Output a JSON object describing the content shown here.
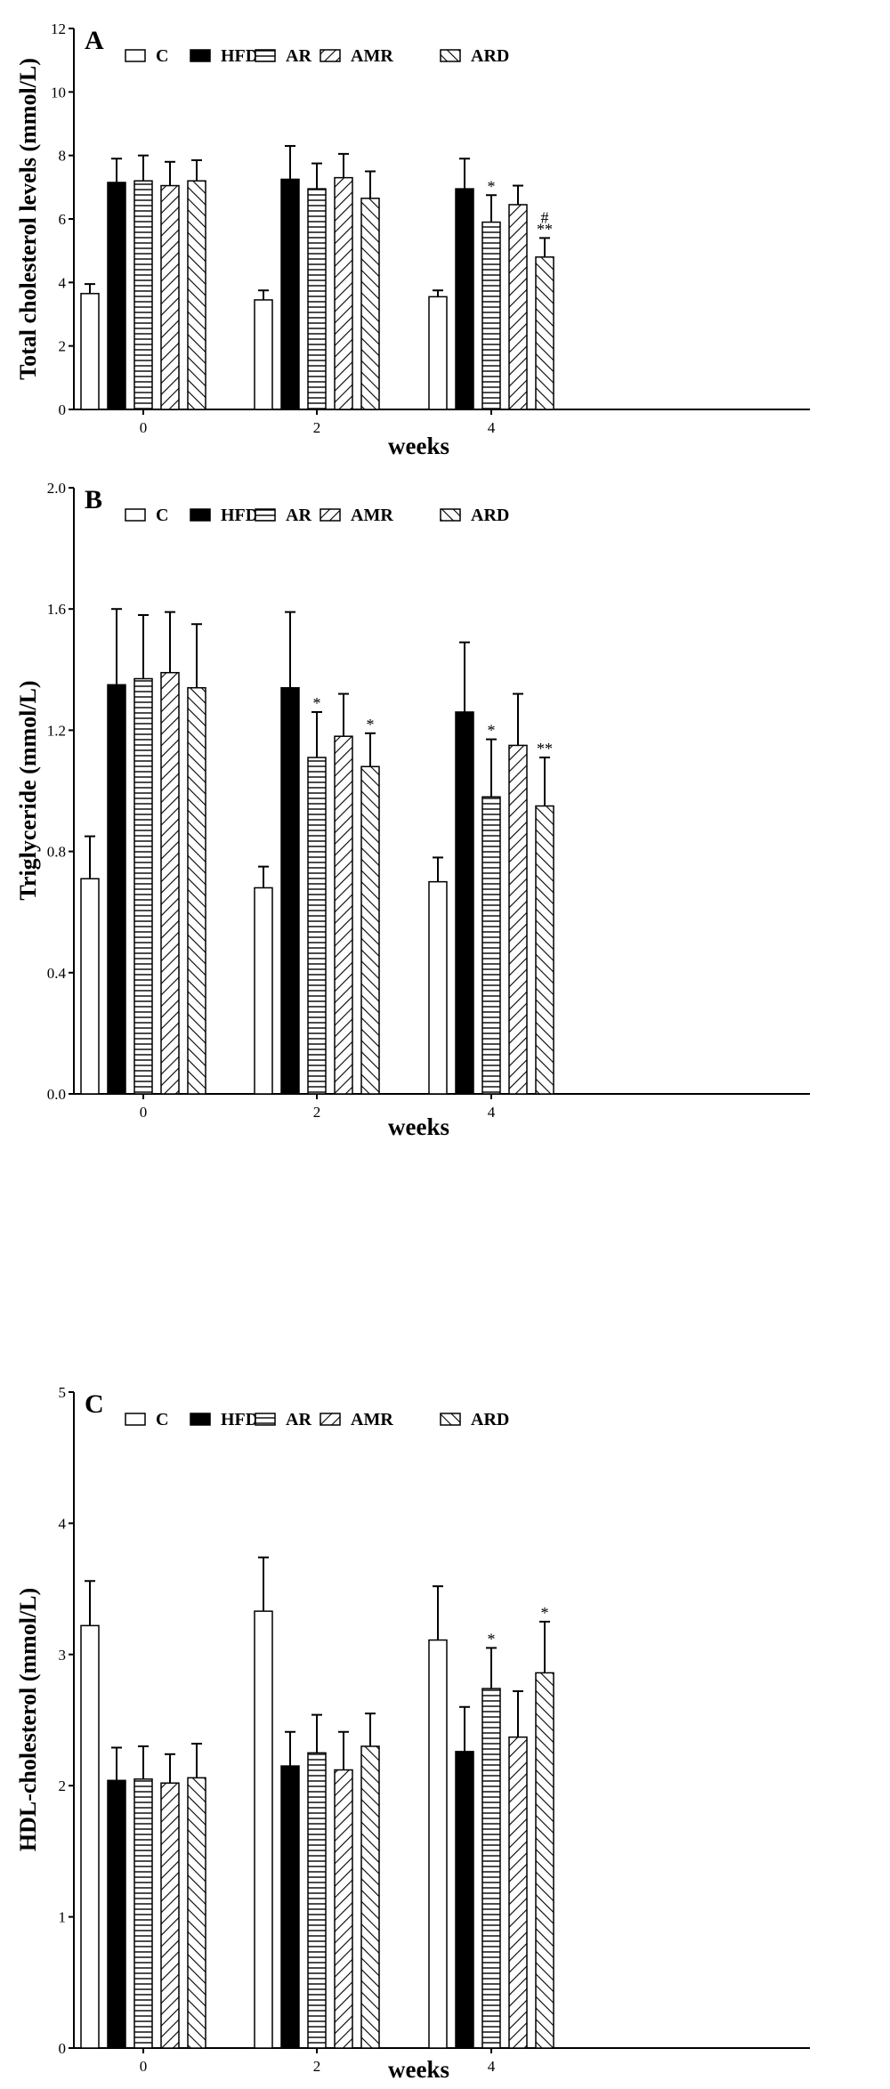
{
  "chart_data": [
    {
      "type": "bar",
      "panel_label": "A",
      "ylabel": "Total cholesterol levels (mmol/L)",
      "xlabel": "weeks",
      "categories": [
        "0",
        "2",
        "4"
      ],
      "ylim": [
        0,
        12
      ],
      "yticks": [
        "0",
        "2",
        "4",
        "6",
        "8",
        "10",
        "12"
      ],
      "legend_position": "top",
      "series": [
        {
          "name": "C",
          "values": [
            3.65,
            3.45,
            3.55
          ],
          "errors": [
            0.3,
            0.3,
            0.2
          ],
          "sig": [
            "",
            "",
            ""
          ]
        },
        {
          "name": "HFD",
          "values": [
            7.15,
            7.25,
            6.95
          ],
          "errors": [
            0.75,
            1.05,
            0.95
          ],
          "sig": [
            "",
            "",
            ""
          ]
        },
        {
          "name": "AR",
          "values": [
            7.2,
            6.95,
            5.9
          ],
          "errors": [
            0.8,
            0.8,
            0.85
          ],
          "sig": [
            "",
            "",
            "*"
          ]
        },
        {
          "name": "AMR",
          "values": [
            7.05,
            7.3,
            6.45
          ],
          "errors": [
            0.75,
            0.75,
            0.6
          ],
          "sig": [
            "",
            "",
            ""
          ]
        },
        {
          "name": "ARD",
          "values": [
            7.2,
            6.65,
            4.8
          ],
          "errors": [
            0.65,
            0.85,
            0.6
          ],
          "sig": [
            "",
            "",
            "#\n**"
          ]
        }
      ]
    },
    {
      "type": "bar",
      "panel_label": "B",
      "ylabel": "Triglyceride (mmol/L)",
      "xlabel": "weeks",
      "categories": [
        "0",
        "2",
        "4"
      ],
      "ylim": [
        0,
        2
      ],
      "yticks": [
        "0.0",
        "0.4",
        "0.8",
        "1.2",
        "1.6",
        "2.0"
      ],
      "legend_position": "top",
      "series": [
        {
          "name": "C",
          "values": [
            0.71,
            0.68,
            0.7
          ],
          "errors": [
            0.14,
            0.07,
            0.08
          ],
          "sig": [
            "",
            "",
            ""
          ]
        },
        {
          "name": "HFD",
          "values": [
            1.35,
            1.34,
            1.26
          ],
          "errors": [
            0.25,
            0.25,
            0.23
          ],
          "sig": [
            "",
            "",
            ""
          ]
        },
        {
          "name": "AR",
          "values": [
            1.37,
            1.11,
            0.98
          ],
          "errors": [
            0.21,
            0.15,
            0.19
          ],
          "sig": [
            "",
            "*",
            "*"
          ]
        },
        {
          "name": "AMR",
          "values": [
            1.39,
            1.18,
            1.15
          ],
          "errors": [
            0.2,
            0.14,
            0.17
          ],
          "sig": [
            "",
            "",
            ""
          ]
        },
        {
          "name": "ARD",
          "values": [
            1.34,
            1.08,
            0.95
          ],
          "errors": [
            0.21,
            0.11,
            0.16
          ],
          "sig": [
            "",
            "*",
            "**"
          ]
        }
      ]
    },
    {
      "type": "bar",
      "panel_label": "C",
      "ylabel": "HDL-cholesterol (mmol/L)",
      "xlabel": "weeks",
      "categories": [
        "0",
        "2",
        "4"
      ],
      "ylim": [
        0,
        5
      ],
      "yticks": [
        "0",
        "1",
        "2",
        "3",
        "4",
        "5"
      ],
      "legend_position": "top",
      "series": [
        {
          "name": "C",
          "values": [
            3.22,
            3.33,
            3.11
          ],
          "errors": [
            0.34,
            0.41,
            0.41
          ],
          "sig": [
            "",
            "",
            ""
          ]
        },
        {
          "name": "HFD",
          "values": [
            2.04,
            2.15,
            2.26
          ],
          "errors": [
            0.25,
            0.26,
            0.34
          ],
          "sig": [
            "",
            "",
            ""
          ]
        },
        {
          "name": "AR",
          "values": [
            2.05,
            2.25,
            2.74
          ],
          "errors": [
            0.25,
            0.29,
            0.31
          ],
          "sig": [
            "",
            "",
            "*"
          ]
        },
        {
          "name": "AMR",
          "values": [
            2.02,
            2.12,
            2.37
          ],
          "errors": [
            0.22,
            0.29,
            0.35
          ],
          "sig": [
            "",
            "",
            ""
          ]
        },
        {
          "name": "ARD",
          "values": [
            2.06,
            2.3,
            2.86
          ],
          "errors": [
            0.26,
            0.25,
            0.39
          ],
          "sig": [
            "",
            "",
            "*"
          ]
        }
      ]
    }
  ]
}
